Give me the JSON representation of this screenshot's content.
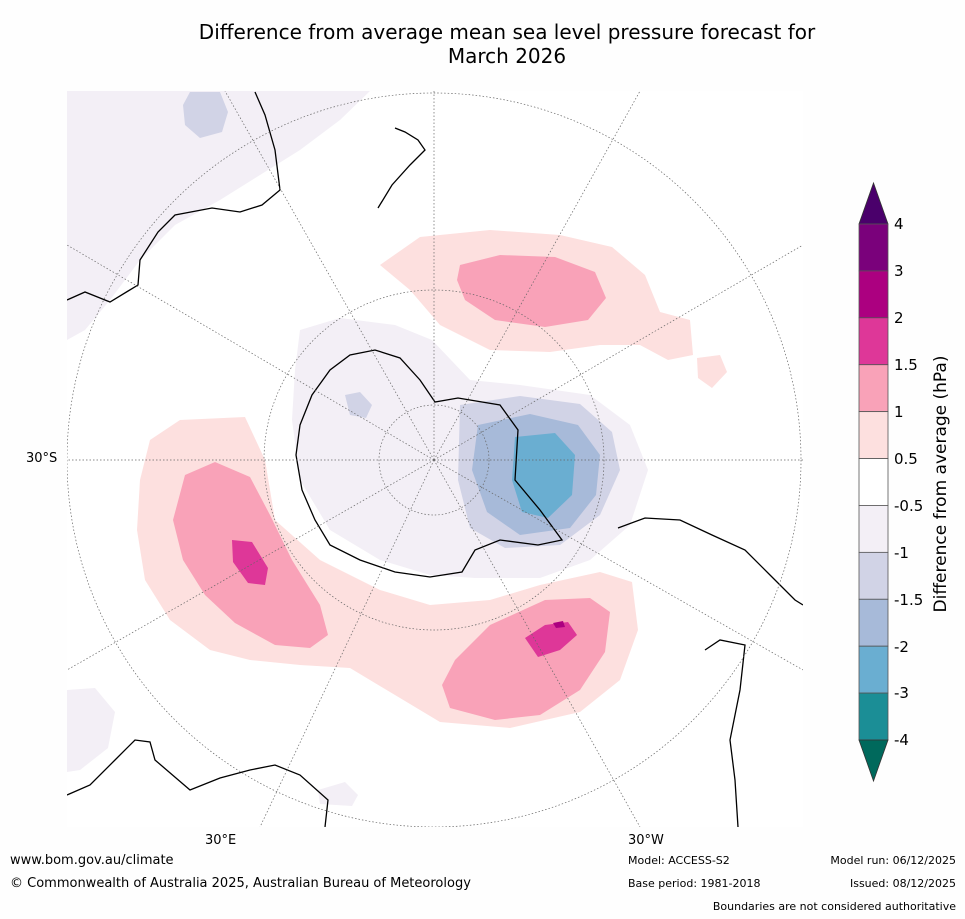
{
  "title": {
    "line1": "Difference from average mean sea level pressure forecast for",
    "line2": "March 2026"
  },
  "map": {
    "projection": "south-polar-stereographic",
    "labels": {
      "lat_30s": "30°S",
      "lon_30e": "30°E",
      "lon_30w": "30°W"
    },
    "contour_colors": {
      "below_-4": "#00695c",
      "-4_to_-3": "#1b8e96",
      "-3_to_-2": "#6aaed1",
      "-2_to_-1.5": "#a7bad9",
      "-1.5_to_-1": "#d1d3e6",
      "-1_to_-0.5": "#f3eff6",
      "-0.5_to_0.5": "#ffffff",
      "0.5_to_1": "#fde0df",
      "1_to_1.5": "#f9a2b8",
      "1.5_to_2": "#de3798",
      "2_to_3": "#ac0080",
      "3_to_4": "#7a017b",
      "above_4": "#4a006b"
    }
  },
  "colorbar": {
    "title": "Difference from average (hPa)",
    "tick_labels": [
      "4",
      "3",
      "2",
      "1.5",
      "1",
      "0.5",
      "-0.5",
      "-1",
      "-1.5",
      "-2",
      "-3",
      "-4"
    ],
    "colors_top_to_bottom": [
      "#7a017b",
      "#ac0080",
      "#de3798",
      "#f9a2b8",
      "#fde0df",
      "#ffffff",
      "#f3eff6",
      "#d1d3e6",
      "#a7bad9",
      "#6aaed1",
      "#1b8e96"
    ],
    "top_arrow_color": "#4a006b",
    "bottom_arrow_color": "#00695c"
  },
  "footer": {
    "website": "www.bom.gov.au/climate",
    "copyright": "© Commonwealth of Australia 2025, Australian Bureau of Meteorology",
    "model": "Model: ACCESS-S2",
    "base_period": "Base period: 1981-2018",
    "model_run": "Model run: 06/12/2025",
    "issued": "Issued: 08/12/2025",
    "disclaimer": "Boundaries are not considered authoritative"
  }
}
